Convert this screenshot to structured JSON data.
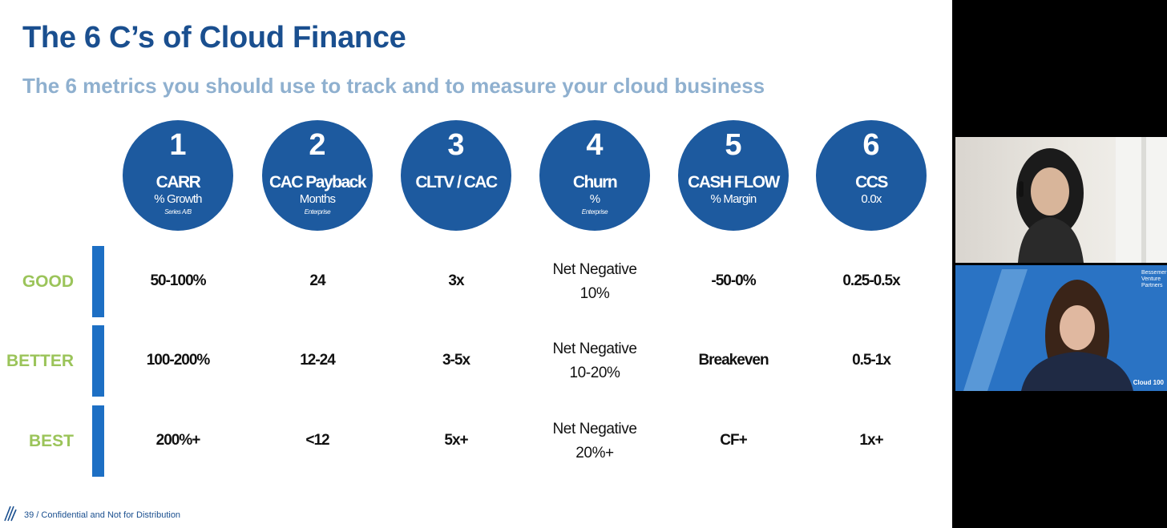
{
  "slide": {
    "title": "The 6 C’s of Cloud Finance",
    "subtitle": "The 6 metrics you should use to track and to measure your cloud business",
    "metrics": [
      {
        "num": "1",
        "name": "CARR",
        "unit": "% Growth",
        "note": "Series A/B"
      },
      {
        "num": "2",
        "name": "CAC Payback",
        "unit": "Months",
        "note": "Enterprise"
      },
      {
        "num": "3",
        "name": "CLTV / CAC",
        "unit": "",
        "note": ""
      },
      {
        "num": "4",
        "name": "Churn",
        "unit": "%",
        "note": "Enterprise"
      },
      {
        "num": "5",
        "name": "CASH FLOW",
        "unit": "% Margin",
        "note": ""
      },
      {
        "num": "6",
        "name": "CCS",
        "unit": "0.0x",
        "note": ""
      }
    ],
    "rows": [
      {
        "label": "GOOD",
        "values": [
          "50-100%",
          "24",
          "3x",
          "Net Negative|10%",
          "-50-0%",
          "0.25-0.5x"
        ]
      },
      {
        "label": "BETTER",
        "values": [
          "100-200%",
          "12-24",
          "3-5x",
          "Net Negative|10-20%",
          "Breakeven",
          "0.5-1x"
        ]
      },
      {
        "label": "BEST",
        "values": [
          "200%+",
          "<12",
          "5x+",
          "Net Negative|20%+",
          "CF+",
          "1x+"
        ]
      }
    ],
    "footer": "39 / Confidential and Not for Distribution"
  },
  "video": {
    "logo_text": "Bessemer Venture Partners",
    "cloud_label": "Cloud 100"
  },
  "colors": {
    "title": "#1a4f8f",
    "subtitle": "#8fb0cf",
    "circle": "#1d5a9f",
    "row_label": "#9bc45a",
    "bar": "#1d6fc4"
  }
}
